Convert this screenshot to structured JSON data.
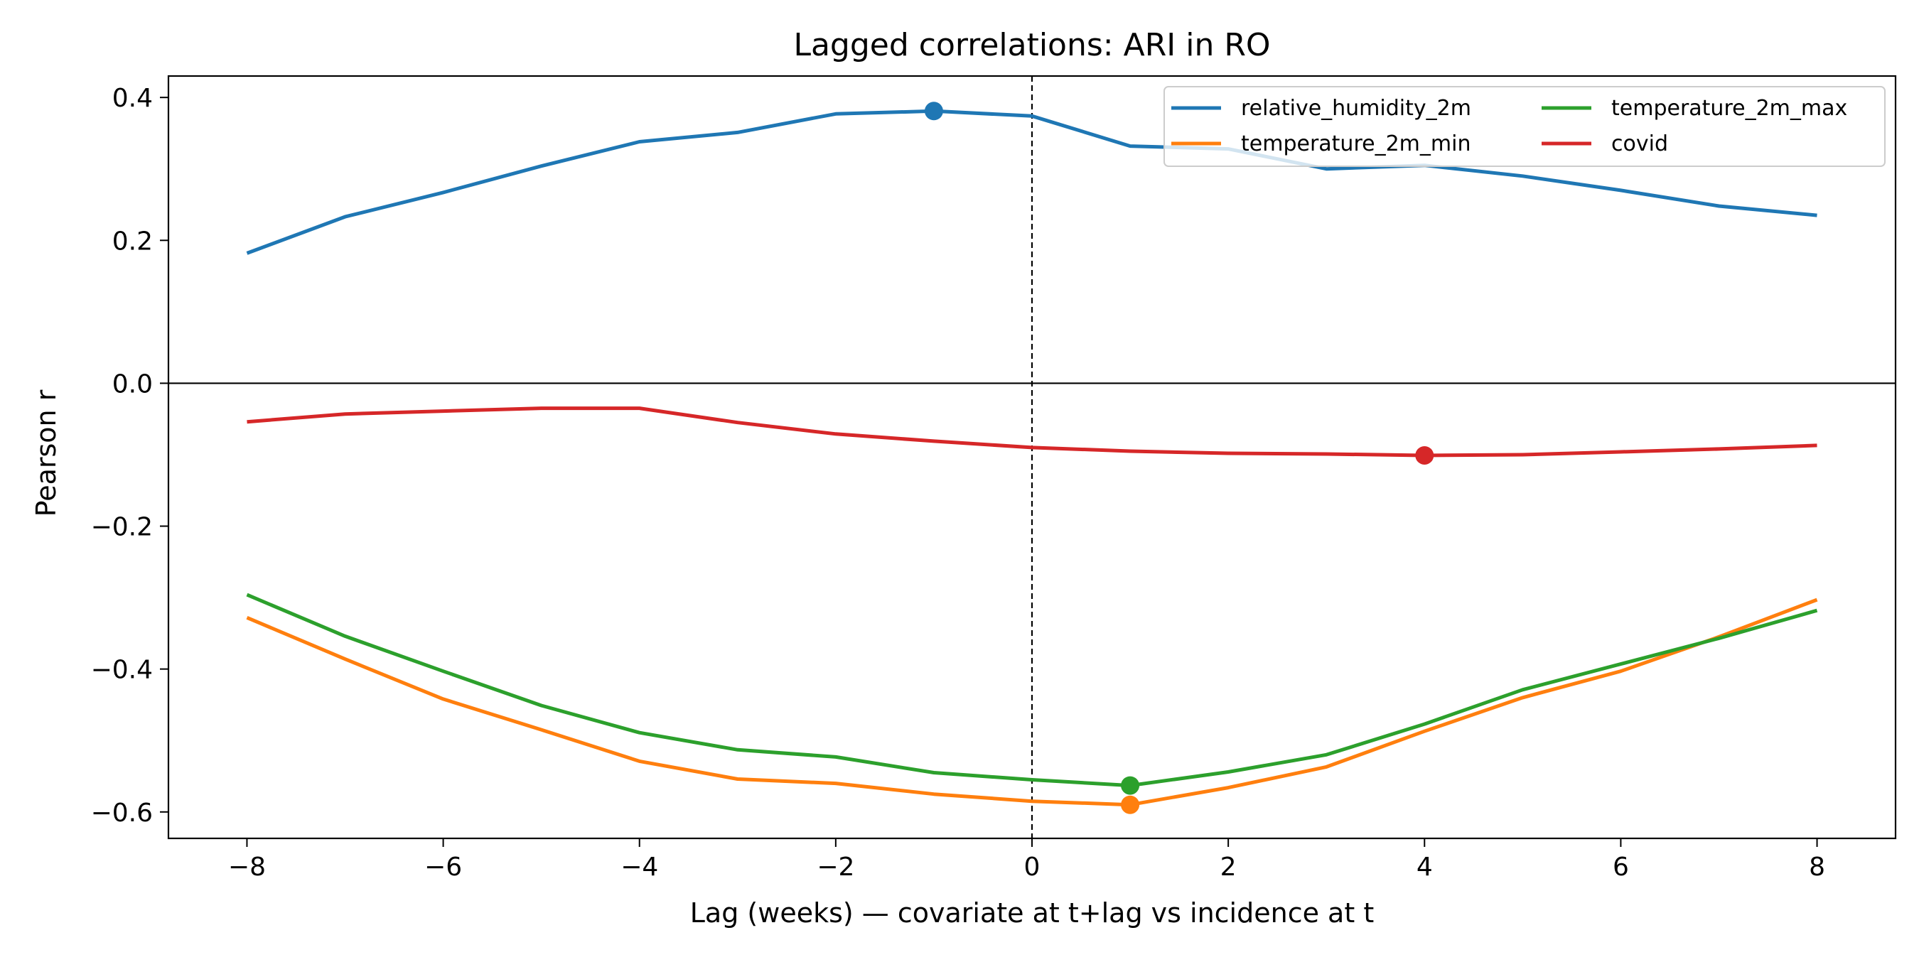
{
  "chart_data": {
    "type": "line",
    "title": "Lagged correlations: ARI in RO",
    "xlabel": "Lag (weeks) — covariate at t+lag vs incidence at t",
    "ylabel": "Pearson r",
    "xlim": [
      -8.8,
      8.8
    ],
    "ylim": [
      -0.637,
      0.43
    ],
    "x_ticks": [
      -8,
      -6,
      -4,
      -2,
      0,
      2,
      4,
      6,
      8
    ],
    "x_tick_labels": [
      "−8",
      "−6",
      "−4",
      "−2",
      "0",
      "2",
      "4",
      "6",
      "8"
    ],
    "y_ticks": [
      0.4,
      0.2,
      0.0,
      -0.2,
      -0.4,
      -0.6
    ],
    "y_tick_labels": [
      "0.4",
      "0.2",
      "0.0",
      "−0.2",
      "−0.4",
      "−0.6"
    ],
    "grid": false,
    "reference_lines": {
      "horizontal_at_y": 0,
      "vertical_dashed_at_x": 0
    },
    "legend": {
      "placement": "top-right",
      "columns": 2
    },
    "x": [
      -8,
      -7,
      -6,
      -5,
      -4,
      -3,
      -2,
      -1,
      0,
      1,
      2,
      3,
      4,
      5,
      6,
      7,
      8
    ],
    "series": [
      {
        "name": "relative_humidity_2m",
        "color": "#1f77b4",
        "values": [
          0.182,
          0.233,
          0.267,
          0.304,
          0.338,
          0.351,
          0.377,
          0.381,
          0.374,
          0.332,
          0.328,
          0.3,
          0.305,
          0.29,
          0.27,
          0.248,
          0.235
        ],
        "marker_x": -1,
        "marker_y": 0.381
      },
      {
        "name": "temperature_2m_min",
        "color": "#ff7f0e",
        "values": [
          -0.328,
          -0.386,
          -0.442,
          -0.485,
          -0.529,
          -0.554,
          -0.56,
          -0.575,
          -0.585,
          -0.59,
          -0.566,
          -0.537,
          -0.487,
          -0.44,
          -0.403,
          -0.355,
          -0.303
        ],
        "marker_x": 1,
        "marker_y": -0.59
      },
      {
        "name": "temperature_2m_max",
        "color": "#2ca02c",
        "values": [
          -0.296,
          -0.354,
          -0.403,
          -0.451,
          -0.489,
          -0.513,
          -0.523,
          -0.545,
          -0.555,
          -0.563,
          -0.544,
          -0.52,
          -0.477,
          -0.429,
          -0.393,
          -0.357,
          -0.318
        ],
        "marker_x": 1,
        "marker_y": -0.563
      },
      {
        "name": "covid",
        "color": "#d62728",
        "values": [
          -0.054,
          -0.043,
          -0.039,
          -0.035,
          -0.035,
          -0.055,
          -0.071,
          -0.081,
          -0.09,
          -0.095,
          -0.098,
          -0.099,
          -0.101,
          -0.1,
          -0.096,
          -0.092,
          -0.087
        ],
        "marker_x": 4,
        "marker_y": -0.101
      }
    ]
  }
}
